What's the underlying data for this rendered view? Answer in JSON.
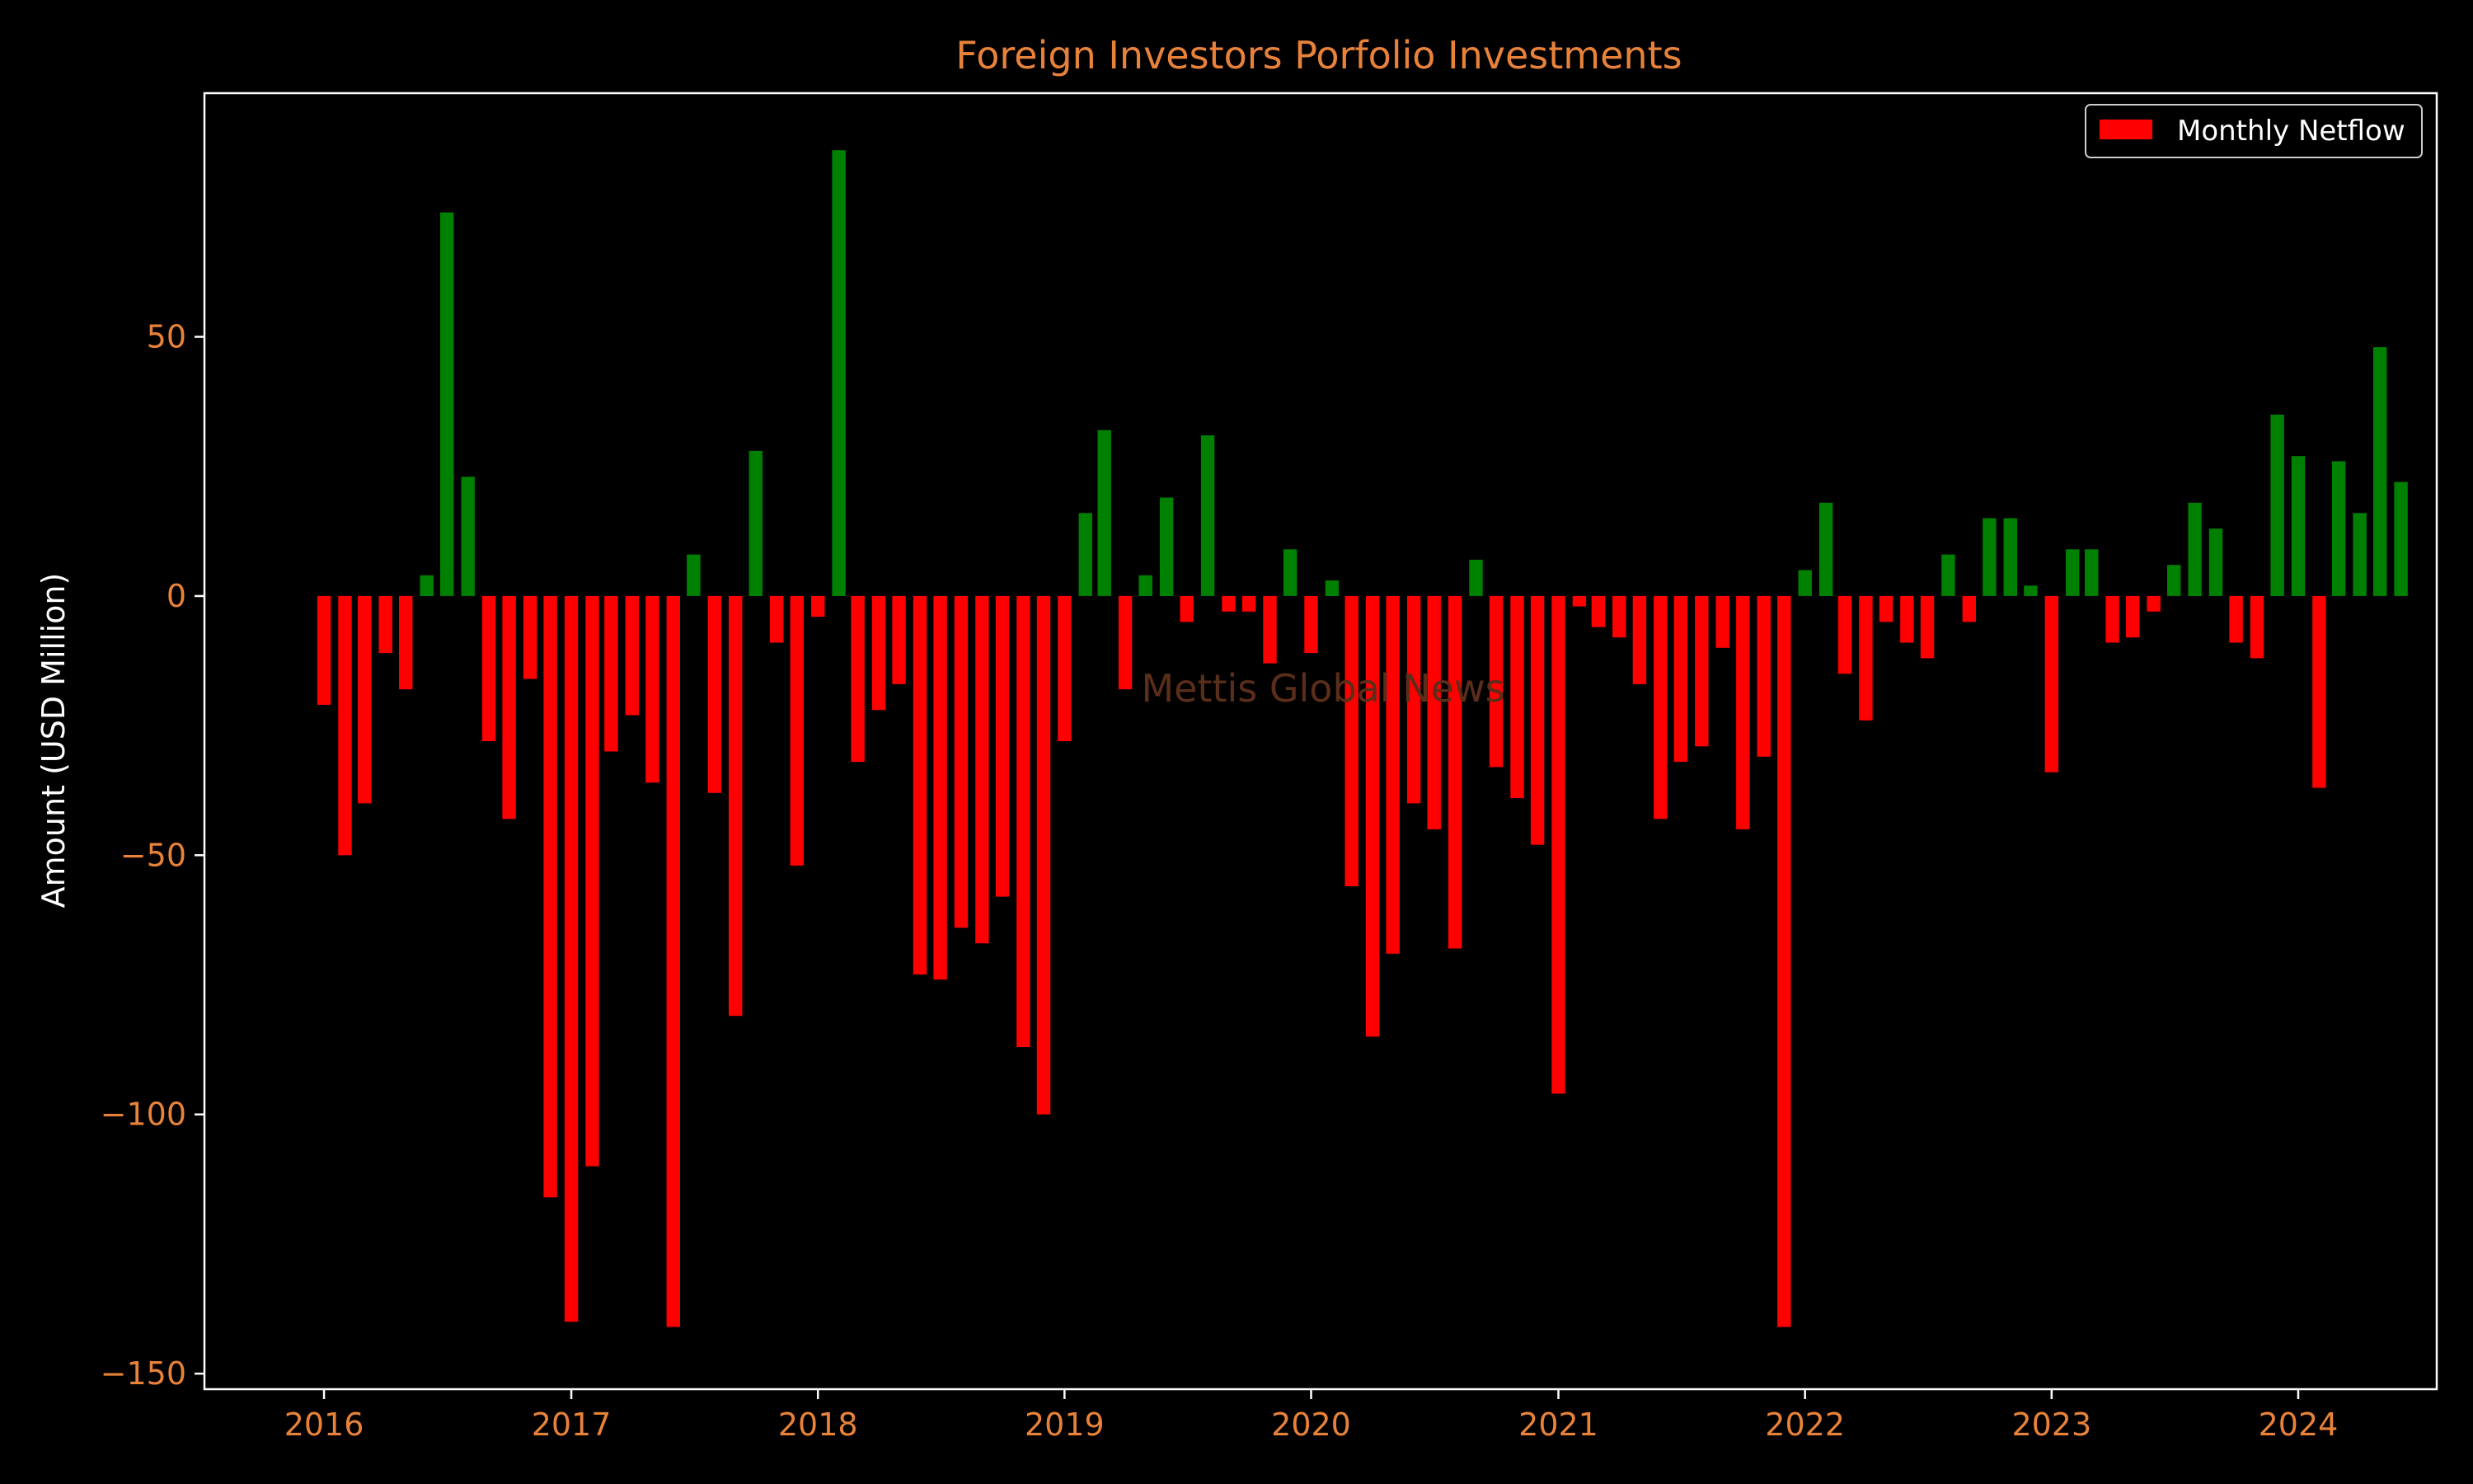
{
  "chart_data": {
    "type": "bar",
    "title": "Foreign Investors Porfolio Investments",
    "xlabel": "",
    "ylabel": "Amount (USD Million)",
    "watermark": "Mettis Global News",
    "legend": {
      "label": "Monthly Netflow",
      "position": "top-right"
    },
    "x_range": [
      "2015-07-08",
      "2024-07-24"
    ],
    "ylim": [
      -153,
      97
    ],
    "x_ticks": [
      {
        "date": "2016-01-01",
        "label": "2016"
      },
      {
        "date": "2017-01-01",
        "label": "2017"
      },
      {
        "date": "2018-01-01",
        "label": "2018"
      },
      {
        "date": "2019-01-01",
        "label": "2019"
      },
      {
        "date": "2020-01-01",
        "label": "2020"
      },
      {
        "date": "2021-01-01",
        "label": "2021"
      },
      {
        "date": "2022-01-01",
        "label": "2022"
      },
      {
        "date": "2023-01-01",
        "label": "2023"
      },
      {
        "date": "2024-01-01",
        "label": "2024"
      }
    ],
    "y_ticks": [
      {
        "value": 50,
        "label": "50"
      },
      {
        "value": 0,
        "label": "0"
      },
      {
        "value": -50,
        "label": "−50"
      },
      {
        "value": -100,
        "label": "−100"
      },
      {
        "value": -150,
        "label": "−150"
      }
    ],
    "colors": {
      "positive": "#008000",
      "negative": "#ff0000",
      "title": "#e8823a",
      "tick_labels": "#e8823a",
      "axis_title": "#ffffff",
      "frame": "#ffffff",
      "background": "#000000",
      "watermark": "#5a2e1a"
    },
    "series": [
      {
        "name": "Monthly Netflow",
        "x": [
          "2016-01",
          "2016-02",
          "2016-03",
          "2016-04",
          "2016-05",
          "2016-06",
          "2016-07",
          "2016-08",
          "2016-09",
          "2016-10",
          "2016-11",
          "2016-12",
          "2017-01",
          "2017-02",
          "2017-03",
          "2017-04",
          "2017-05",
          "2017-06",
          "2017-07",
          "2017-08",
          "2017-09",
          "2017-10",
          "2017-11",
          "2017-12",
          "2018-01",
          "2018-02",
          "2018-03",
          "2018-04",
          "2018-05",
          "2018-06",
          "2018-07",
          "2018-08",
          "2018-09",
          "2018-10",
          "2018-11",
          "2018-12",
          "2019-01",
          "2019-02",
          "2019-03",
          "2019-04",
          "2019-05",
          "2019-06",
          "2019-07",
          "2019-08",
          "2019-09",
          "2019-10",
          "2019-11",
          "2019-12",
          "2020-01",
          "2020-02",
          "2020-03",
          "2020-04",
          "2020-05",
          "2020-06",
          "2020-07",
          "2020-08",
          "2020-09",
          "2020-10",
          "2020-11",
          "2020-12",
          "2021-01",
          "2021-02",
          "2021-03",
          "2021-04",
          "2021-05",
          "2021-06",
          "2021-07",
          "2021-08",
          "2021-09",
          "2021-10",
          "2021-11",
          "2021-12",
          "2022-01",
          "2022-02",
          "2022-03",
          "2022-04",
          "2022-05",
          "2022-06",
          "2022-07",
          "2022-08",
          "2022-09",
          "2022-10",
          "2022-11",
          "2022-12",
          "2023-01",
          "2023-02",
          "2023-03",
          "2023-04",
          "2023-05",
          "2023-06",
          "2023-07",
          "2023-08",
          "2023-09",
          "2023-10",
          "2023-11",
          "2023-12",
          "2024-01",
          "2024-02",
          "2024-03",
          "2024-04",
          "2024-05",
          "2024-06"
        ],
        "values": [
          -21,
          -50,
          -40,
          -11,
          -18,
          4,
          74,
          23,
          -28,
          -43,
          -16,
          -116,
          -140,
          -110,
          -30,
          -23,
          -36,
          -141,
          8,
          -38,
          -81,
          28,
          -9,
          -52,
          -4,
          86,
          -32,
          -22,
          -17,
          -73,
          -74,
          -64,
          -67,
          -58,
          -87,
          -100,
          -28,
          16,
          32,
          -18,
          4,
          19,
          -5,
          31,
          -3,
          -3,
          -13,
          9,
          -11,
          3,
          -56,
          -85,
          -69,
          -40,
          -45,
          -68,
          7,
          -33,
          -39,
          -48,
          -96,
          -2,
          -6,
          -8,
          -17,
          -43,
          -32,
          -29,
          -10,
          -45,
          -31,
          -141,
          5,
          18,
          -15,
          -24,
          -5,
          -9,
          -12,
          8,
          -5,
          15,
          15,
          2,
          -34,
          9,
          9,
          -9,
          -8,
          -3,
          6,
          18,
          13,
          -9,
          -12,
          35,
          27,
          -37,
          26,
          16,
          48,
          22
        ]
      }
    ]
  }
}
